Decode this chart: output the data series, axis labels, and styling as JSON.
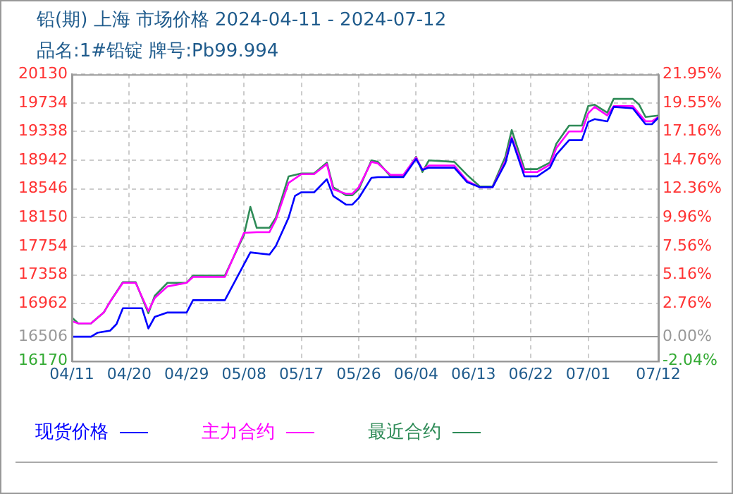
{
  "chart_data": {
    "type": "line",
    "title": "铅(期) 上海 市场价格 2024-04-11 - 2024-07-12",
    "subtitle": "品名:1#铅锭 牌号:Pb99.994",
    "xlim": [
      "2024-04-11",
      "2024-07-12"
    ],
    "xticks": [
      {
        "value": "2024-04-11",
        "label": "04/11"
      },
      {
        "value": "2024-04-20",
        "label": "04/20"
      },
      {
        "value": "2024-04-29",
        "label": "04/29"
      },
      {
        "value": "2024-05-08",
        "label": "05/08"
      },
      {
        "value": "2024-05-17",
        "label": "05/17"
      },
      {
        "value": "2024-05-26",
        "label": "05/26"
      },
      {
        "value": "2024-06-04",
        "label": "06/04"
      },
      {
        "value": "2024-06-13",
        "label": "06/13"
      },
      {
        "value": "2024-06-22",
        "label": "06/22"
      },
      {
        "value": "2024-07-01",
        "label": "07/01"
      },
      {
        "value": "2024-07-12",
        "label": "07/12"
      }
    ],
    "ylim": [
      16170,
      20130
    ],
    "yticks": [
      16170,
      16506,
      16962,
      17358,
      17754,
      18150,
      18546,
      18942,
      19338,
      19734,
      20130
    ],
    "y2lim": [
      -2.04,
      21.95
    ],
    "y2ticks": [
      {
        "value": -2.04,
        "label": "-2.04%"
      },
      {
        "value": 0,
        "label": "0.00%"
      },
      {
        "value": 2.76,
        "label": "2.76%"
      },
      {
        "value": 5.16,
        "label": "5.16%"
      },
      {
        "value": 7.56,
        "label": "7.56%"
      },
      {
        "value": 9.96,
        "label": "9.96%"
      },
      {
        "value": 12.36,
        "label": "12.36%"
      },
      {
        "value": 14.76,
        "label": "14.76%"
      },
      {
        "value": 17.16,
        "label": "17.16%"
      },
      {
        "value": 19.55,
        "label": "19.55%"
      },
      {
        "value": 21.95,
        "label": "21.95%"
      }
    ],
    "grid": true,
    "legend": "bottom",
    "marker": "none",
    "line_style": "solid",
    "series": [
      {
        "name": "现货价格",
        "color": "#0000ff",
        "x": [
          "2024-04-11",
          "2024-04-14",
          "2024-04-15",
          "2024-04-17",
          "2024-04-18",
          "2024-04-19",
          "2024-04-22",
          "2024-04-23",
          "2024-04-24",
          "2024-04-26",
          "2024-04-29",
          "2024-04-30",
          "2024-05-05",
          "2024-05-09",
          "2024-05-12",
          "2024-05-13",
          "2024-05-15",
          "2024-05-16",
          "2024-05-17",
          "2024-05-19",
          "2024-05-21",
          "2024-05-22",
          "2024-05-24",
          "2024-05-25",
          "2024-05-26",
          "2024-05-28",
          "2024-05-29",
          "2024-06-02",
          "2024-06-04",
          "2024-06-05",
          "2024-06-06",
          "2024-06-10",
          "2024-06-12",
          "2024-06-14",
          "2024-06-16",
          "2024-06-18",
          "2024-06-19",
          "2024-06-21",
          "2024-06-23",
          "2024-06-25",
          "2024-06-26",
          "2024-06-28",
          "2024-06-30",
          "2024-07-01",
          "2024-07-02",
          "2024-07-04",
          "2024-07-05",
          "2024-07-08",
          "2024-07-10",
          "2024-07-11",
          "2024-07-12"
        ],
        "values": [
          16506,
          16506,
          16560,
          16590,
          16680,
          16900,
          16900,
          16620,
          16780,
          16840,
          16840,
          17010,
          17010,
          17670,
          17640,
          17760,
          18150,
          18450,
          18500,
          18500,
          18680,
          18450,
          18330,
          18330,
          18420,
          18700,
          18710,
          18710,
          18960,
          18810,
          18840,
          18840,
          18640,
          18570,
          18570,
          18900,
          19240,
          18720,
          18720,
          18840,
          19020,
          19220,
          19220,
          19470,
          19510,
          19480,
          19680,
          19660,
          19440,
          19440,
          19530
        ]
      },
      {
        "name": "主力合约",
        "color": "#ff00ff",
        "x": [
          "2024-04-11",
          "2024-04-12",
          "2024-04-14",
          "2024-04-16",
          "2024-04-17",
          "2024-04-19",
          "2024-04-21",
          "2024-04-23",
          "2024-04-24",
          "2024-04-26",
          "2024-04-29",
          "2024-04-30",
          "2024-05-05",
          "2024-05-08",
          "2024-05-10",
          "2024-05-12",
          "2024-05-13",
          "2024-05-15",
          "2024-05-17",
          "2024-05-19",
          "2024-05-21",
          "2024-05-22",
          "2024-05-24",
          "2024-05-25",
          "2024-05-26",
          "2024-05-28",
          "2024-05-29",
          "2024-05-31",
          "2024-06-02",
          "2024-06-04",
          "2024-06-05",
          "2024-06-06",
          "2024-06-10",
          "2024-06-12",
          "2024-06-14",
          "2024-06-16",
          "2024-06-18",
          "2024-06-19",
          "2024-06-21",
          "2024-06-23",
          "2024-06-25",
          "2024-06-26",
          "2024-06-28",
          "2024-06-30",
          "2024-07-01",
          "2024-07-02",
          "2024-07-04",
          "2024-07-05",
          "2024-07-08",
          "2024-07-10",
          "2024-07-11",
          "2024-07-12"
        ],
        "values": [
          16720,
          16690,
          16690,
          16840,
          16990,
          17250,
          17250,
          16860,
          17040,
          17200,
          17250,
          17330,
          17330,
          17940,
          17950,
          17950,
          18120,
          18630,
          18750,
          18750,
          18890,
          18540,
          18480,
          18480,
          18570,
          18920,
          18900,
          18740,
          18740,
          18980,
          18810,
          18870,
          18870,
          18660,
          18570,
          18570,
          18930,
          19260,
          18780,
          18780,
          18880,
          19110,
          19340,
          19340,
          19590,
          19680,
          19560,
          19690,
          19690,
          19480,
          19480,
          19540
        ]
      },
      {
        "name": "最近合约",
        "color": "#2e8b57",
        "x": [
          "2024-04-11",
          "2024-04-12",
          "2024-04-14",
          "2024-04-16",
          "2024-04-17",
          "2024-04-19",
          "2024-04-21",
          "2024-04-23",
          "2024-04-24",
          "2024-04-26",
          "2024-04-29",
          "2024-04-30",
          "2024-05-05",
          "2024-05-08",
          "2024-05-09",
          "2024-05-10",
          "2024-05-12",
          "2024-05-13",
          "2024-05-15",
          "2024-05-17",
          "2024-05-19",
          "2024-05-21",
          "2024-05-22",
          "2024-05-24",
          "2024-05-25",
          "2024-05-26",
          "2024-05-28",
          "2024-05-29",
          "2024-05-31",
          "2024-06-02",
          "2024-06-04",
          "2024-06-05",
          "2024-06-06",
          "2024-06-10",
          "2024-06-12",
          "2024-06-14",
          "2024-06-16",
          "2024-06-18",
          "2024-06-19",
          "2024-06-21",
          "2024-06-23",
          "2024-06-25",
          "2024-06-26",
          "2024-06-28",
          "2024-06-30",
          "2024-07-01",
          "2024-07-02",
          "2024-07-04",
          "2024-07-05",
          "2024-07-08",
          "2024-07-09",
          "2024-07-10",
          "2024-07-12"
        ],
        "values": [
          16770,
          16690,
          16690,
          16840,
          16990,
          17260,
          17260,
          16830,
          17070,
          17250,
          17250,
          17350,
          17350,
          17910,
          18300,
          18010,
          18010,
          18150,
          18720,
          18760,
          18760,
          18910,
          18570,
          18460,
          18460,
          18540,
          18940,
          18920,
          18720,
          18720,
          18990,
          18780,
          18940,
          18920,
          18740,
          18580,
          18580,
          18990,
          19360,
          18820,
          18820,
          18910,
          19170,
          19420,
          19420,
          19690,
          19710,
          19600,
          19790,
          19790,
          19710,
          19540,
          19560
        ]
      }
    ]
  }
}
